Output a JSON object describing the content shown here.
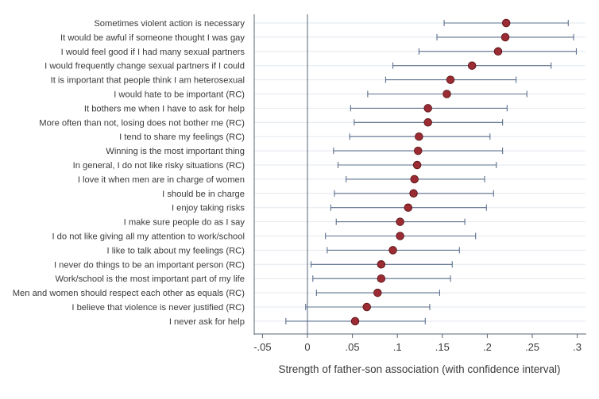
{
  "chart_data": {
    "type": "scatter",
    "title": "",
    "xlabel": "Strength of father-son association (with confidence interval)",
    "ylabel": "",
    "xlim": [
      -0.07,
      0.305
    ],
    "xticks": [
      -0.05,
      0,
      0.05,
      0.1,
      0.15,
      0.2,
      0.25,
      0.3
    ],
    "xtick_labels": [
      "-.05",
      "0",
      ".05",
      ".1",
      ".15",
      ".2",
      ".25",
      ".3"
    ],
    "reference_line_x": 0,
    "grid": "horizontal",
    "colors": {
      "marker": "#9b2c33",
      "marker_edge": "#5a1418",
      "ci": "#5b6f8c",
      "axis": "#556677",
      "grid": "#e2e8ef"
    },
    "items": [
      {
        "label": "Sometimes violent action is necessary",
        "estimate": 0.221,
        "ci_low": 0.152,
        "ci_high": 0.29
      },
      {
        "label": "It would be awful if someone thought I was gay",
        "estimate": 0.22,
        "ci_low": 0.144,
        "ci_high": 0.296
      },
      {
        "label": "I would feel good if I had many sexual partners",
        "estimate": 0.212,
        "ci_low": 0.124,
        "ci_high": 0.299
      },
      {
        "label": "I would frequently change sexual partners if I could",
        "estimate": 0.183,
        "ci_low": 0.095,
        "ci_high": 0.271
      },
      {
        "label": "It is important that people think I am heterosexual",
        "estimate": 0.159,
        "ci_low": 0.087,
        "ci_high": 0.232
      },
      {
        "label": "I would hate to be important (RC)",
        "estimate": 0.155,
        "ci_low": 0.067,
        "ci_high": 0.244
      },
      {
        "label": "It bothers me when I have to ask for help",
        "estimate": 0.134,
        "ci_low": 0.048,
        "ci_high": 0.222
      },
      {
        "label": "More often than not, losing does not bother me (RC)",
        "estimate": 0.134,
        "ci_low": 0.052,
        "ci_high": 0.217
      },
      {
        "label": "I tend to share my feelings (RC)",
        "estimate": 0.124,
        "ci_low": 0.047,
        "ci_high": 0.203
      },
      {
        "label": "Winning is the most important thing",
        "estimate": 0.123,
        "ci_low": 0.029,
        "ci_high": 0.217
      },
      {
        "label": "In general, I do not like risky situations (RC)",
        "estimate": 0.122,
        "ci_low": 0.034,
        "ci_high": 0.21
      },
      {
        "label": "I love it when men are in charge of women",
        "estimate": 0.119,
        "ci_low": 0.043,
        "ci_high": 0.197
      },
      {
        "label": "I should be in charge",
        "estimate": 0.118,
        "ci_low": 0.03,
        "ci_high": 0.207
      },
      {
        "label": "I enjoy taking risks",
        "estimate": 0.112,
        "ci_low": 0.026,
        "ci_high": 0.199
      },
      {
        "label": "I make sure people do as I say",
        "estimate": 0.103,
        "ci_low": 0.032,
        "ci_high": 0.175
      },
      {
        "label": "I do not like giving all my attention to work/school",
        "estimate": 0.103,
        "ci_low": 0.02,
        "ci_high": 0.187
      },
      {
        "label": "I like to talk about my feelings (RC)",
        "estimate": 0.095,
        "ci_low": 0.022,
        "ci_high": 0.169
      },
      {
        "label": "I never do things to be an important person (RC)",
        "estimate": 0.082,
        "ci_low": 0.004,
        "ci_high": 0.161
      },
      {
        "label": "Work/school is the most important part of my life",
        "estimate": 0.082,
        "ci_low": 0.006,
        "ci_high": 0.159
      },
      {
        "label": "Men and women should respect each other as equals (RC)",
        "estimate": 0.078,
        "ci_low": 0.01,
        "ci_high": 0.147
      },
      {
        "label": "I believe that violence is never justified (RC)",
        "estimate": 0.066,
        "ci_low": -0.002,
        "ci_high": 0.136
      },
      {
        "label": "I never ask for help",
        "estimate": 0.053,
        "ci_low": -0.024,
        "ci_high": 0.131
      }
    ]
  }
}
